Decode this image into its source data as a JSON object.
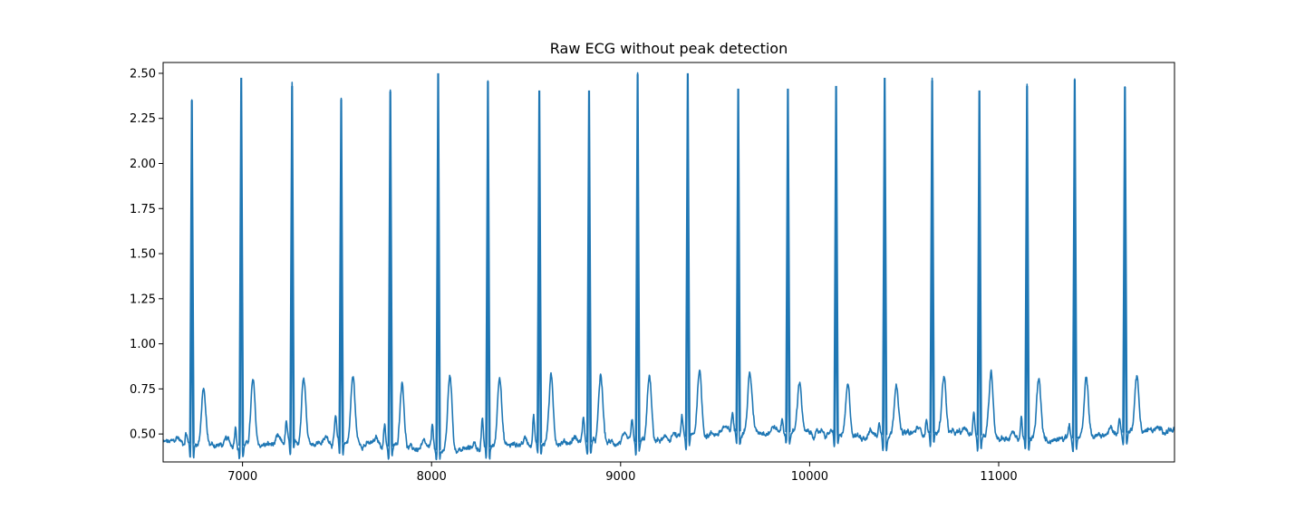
{
  "chart_data": {
    "type": "line",
    "title": "Raw ECG without peak detection",
    "xlabel": "",
    "ylabel": "",
    "xlim": [
      6580,
      11930
    ],
    "ylim": [
      0.345,
      2.56
    ],
    "x_ticks": [
      7000,
      8000,
      9000,
      10000,
      11000
    ],
    "y_ticks": [
      0.5,
      0.75,
      1.0,
      1.25,
      1.5,
      1.75,
      2.0,
      2.25,
      2.5
    ],
    "y_tick_labels": [
      "0.50",
      "0.75",
      "1.00",
      "1.25",
      "1.50",
      "1.75",
      "2.00",
      "2.25",
      "2.50"
    ],
    "grid": false,
    "line_color": "#1f77b4",
    "series": [
      {
        "baseline_start": 0.42,
        "baseline_end": 0.52,
        "beats": [
          {
            "r_x": 6732,
            "r_y": 2.35,
            "t_y": 0.75,
            "p_y": 0.51
          },
          {
            "r_x": 6993,
            "r_y": 2.475,
            "t_y": 0.79,
            "p_y": 0.55
          },
          {
            "r_x": 7262,
            "r_y": 2.43,
            "t_y": 0.83,
            "p_y": 0.57
          },
          {
            "r_x": 7522,
            "r_y": 2.355,
            "t_y": 0.82,
            "p_y": 0.59
          },
          {
            "r_x": 7782,
            "r_y": 2.4,
            "t_y": 0.8,
            "p_y": 0.55
          },
          {
            "r_x": 8035,
            "r_y": 2.5,
            "t_y": 0.83,
            "p_y": 0.55
          },
          {
            "r_x": 8298,
            "r_y": 2.455,
            "t_y": 0.83,
            "p_y": 0.58
          },
          {
            "r_x": 8570,
            "r_y": 2.405,
            "t_y": 0.81,
            "p_y": 0.61
          },
          {
            "r_x": 8833,
            "r_y": 2.405,
            "t_y": 0.82,
            "p_y": 0.6
          },
          {
            "r_x": 9090,
            "r_y": 2.495,
            "t_y": 0.81,
            "p_y": 0.56
          },
          {
            "r_x": 9355,
            "r_y": 2.5,
            "t_y": 0.85,
            "p_y": 0.59
          },
          {
            "r_x": 9622,
            "r_y": 2.415,
            "t_y": 0.84,
            "p_y": 0.62
          },
          {
            "r_x": 9885,
            "r_y": 2.415,
            "t_y": 0.8,
            "p_y": 0.58
          },
          {
            "r_x": 10140,
            "r_y": 2.43,
            "t_y": 0.76,
            "p_y": 0.52
          },
          {
            "r_x": 10397,
            "r_y": 2.475,
            "t_y": 0.79,
            "p_y": 0.56
          },
          {
            "r_x": 10648,
            "r_y": 2.46,
            "t_y": 0.83,
            "p_y": 0.59
          },
          {
            "r_x": 10898,
            "r_y": 2.405,
            "t_y": 0.85,
            "p_y": 0.62
          },
          {
            "r_x": 11150,
            "r_y": 2.43,
            "t_y": 0.81,
            "p_y": 0.59
          },
          {
            "r_x": 11402,
            "r_y": 2.465,
            "t_y": 0.8,
            "p_y": 0.56
          },
          {
            "r_x": 11668,
            "r_y": 2.425,
            "t_y": 0.82,
            "p_y": 0.6
          }
        ]
      }
    ]
  }
}
